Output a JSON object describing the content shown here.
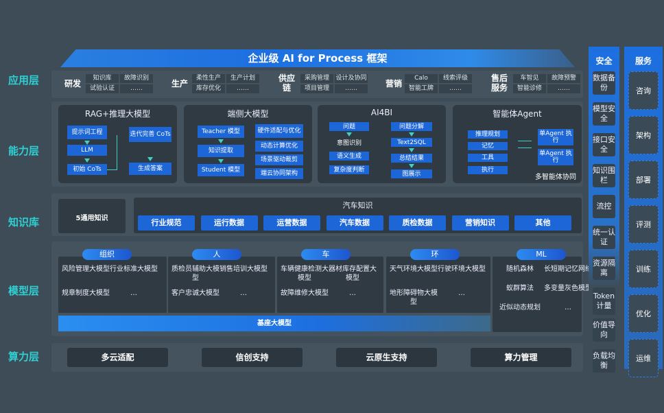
{
  "title": "企业级 AI for Process 框架",
  "layers": {
    "app": "应用层",
    "capability": "能力层",
    "knowledge": "知识库",
    "model": "模型层",
    "compute": "算力层"
  },
  "app_groups": [
    {
      "name": "研发",
      "items": [
        "知识库",
        "试验认证",
        "故障识别",
        "……"
      ]
    },
    {
      "name": "生产",
      "items": [
        "柔性生产",
        "库存优化",
        "生产计划",
        "……"
      ]
    },
    {
      "name": "供应链",
      "items": [
        "采购管理",
        "项目管理",
        "设计及协同",
        "……"
      ]
    },
    {
      "name": "营销",
      "items": [
        "Calo",
        "智能工牌",
        "线索评级",
        "……"
      ]
    },
    {
      "name": "售后服务",
      "items": [
        "车智见",
        "智能诊修",
        "故障预警",
        "……"
      ]
    }
  ],
  "capability": {
    "rag": {
      "title": "RAG+推理大模型",
      "steps": [
        "提示词工程",
        "LLM",
        "初始 CoTs"
      ],
      "right": [
        "迭代完善 CoTs",
        "生成答案"
      ]
    },
    "edge": {
      "title": "端侧大模型",
      "steps": [
        "Teacher 模型",
        "知识提取",
        "Student 模型"
      ],
      "right": [
        "硬件适配与优化",
        "动态计算优化",
        "场景驱动裁剪",
        "端云协同架构"
      ]
    },
    "ai4bi": {
      "title": "AI4BI",
      "left_top": "问题",
      "left_mid": "意图识别",
      "left": [
        "语义生成",
        "复杂度判断"
      ],
      "right": [
        "问题分解",
        "Text2SQL",
        "总结结果",
        "图展示"
      ]
    },
    "agent": {
      "title": "智能体Agent",
      "items": [
        "推理规划",
        "记忆",
        "工具",
        "执行"
      ],
      "right": [
        "单Agent 执行",
        "单Agent 执行"
      ],
      "caption": "多智能体协同"
    }
  },
  "knowledge": {
    "general": "5通用知识",
    "auto_title": "汽车知识",
    "items": [
      "行业规范",
      "运行数据",
      "运营数据",
      "汽车数据",
      "质检数据",
      "营销知识",
      "其他"
    ]
  },
  "model_groups": [
    {
      "name": "组织",
      "items": [
        "风险管理大模型",
        "行业标准大模型",
        "规章制度大模型",
        "…"
      ]
    },
    {
      "name": "人",
      "items": [
        "质检员辅助大模型",
        "销售培训大模型",
        "客户忠诚大模型",
        "…"
      ]
    },
    {
      "name": "车",
      "items": [
        "车辆健康检测大模型",
        "器材库存配置大模型",
        "故障维修大模型",
        "…"
      ]
    },
    {
      "name": "环",
      "items": [
        "天气环境大模型",
        "行驶环境大模型",
        "地形障碍物大模型",
        "…"
      ]
    },
    {
      "name": "ML",
      "items": [
        "随机森林",
        "长短期记忆网络",
        "蚁群算法",
        "多变量灰色模型",
        "近似动态规划",
        "…"
      ]
    }
  ],
  "base_model": "基座大模型",
  "compute": [
    "多云适配",
    "信创支持",
    "云原生支持",
    "算力管理"
  ],
  "security": {
    "title": "安全",
    "items": [
      "数据备份",
      "模型安全",
      "接口安全",
      "知识围栏",
      "流控",
      "统一认证",
      "资源隔离",
      "Token计量",
      "价值导向",
      "负载均衡"
    ]
  },
  "service": {
    "title": "服务",
    "items": [
      "咨询",
      "架构",
      "部署",
      "评测",
      "训练",
      "优化",
      "运维"
    ]
  },
  "colors": {
    "background": "#3d4c56",
    "accent_blue": "#1d6fe0",
    "layer_label": "#2fd0d4",
    "panel": "#2f3a42"
  }
}
